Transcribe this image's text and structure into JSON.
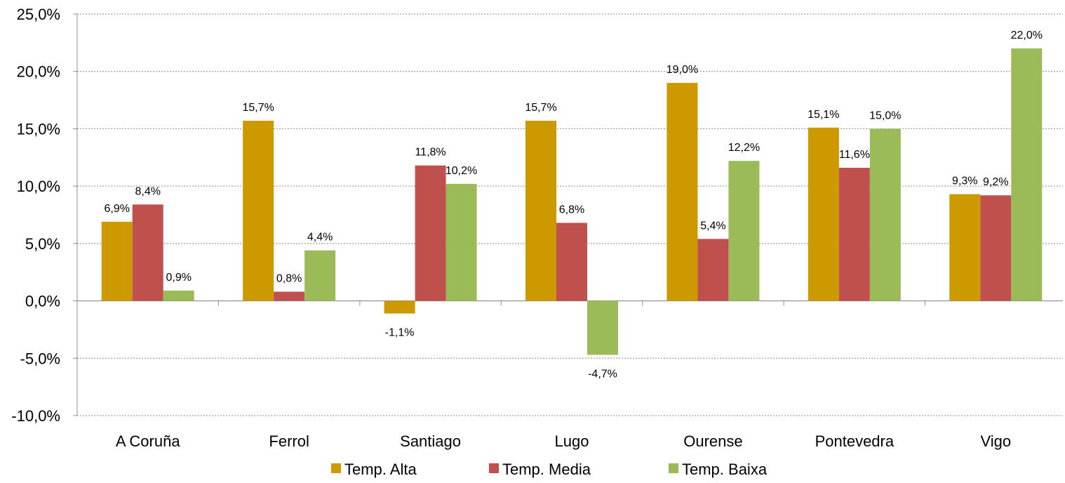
{
  "chart_data": {
    "type": "bar",
    "categories": [
      "A Coruña",
      "Ferrol",
      "Santiago",
      "Lugo",
      "Ourense",
      "Pontevedra",
      "Vigo"
    ],
    "series": [
      {
        "name": "Temp. Alta",
        "color": "#CC9900",
        "values": [
          6.9,
          15.7,
          -1.1,
          15.7,
          19.0,
          15.1,
          9.3
        ],
        "labels": [
          "6,9%",
          "15,7%",
          "-1,1%",
          "15,7%",
          "19,0%",
          "15,1%",
          "9,3%"
        ]
      },
      {
        "name": "Temp. Media",
        "color": "#C0504D",
        "values": [
          8.4,
          0.8,
          11.8,
          6.8,
          5.4,
          11.6,
          9.2
        ],
        "labels": [
          "8,4%",
          "0,8%",
          "11,8%",
          "6,8%",
          "5,4%",
          "11,6%",
          "9,2%"
        ]
      },
      {
        "name": "Temp. Baixa",
        "color": "#9BBB59",
        "values": [
          0.9,
          4.4,
          10.2,
          -4.7,
          12.2,
          15.0,
          22.0
        ],
        "labels": [
          "0,9%",
          "4,4%",
          "10,2%",
          "-4,7%",
          "12,2%",
          "15,0%",
          "22,0%"
        ]
      }
    ],
    "ylim": [
      -10,
      25
    ],
    "yticks": [
      -10,
      -5,
      0,
      5,
      10,
      15,
      20,
      25
    ],
    "ytick_labels": [
      "-10,0%",
      "-5,0%",
      "0,0%",
      "5,0%",
      "10,0%",
      "15,0%",
      "20,0%",
      "25,0%"
    ],
    "grid": true,
    "legend": "bottom",
    "title": "",
    "xlabel": "",
    "ylabel": ""
  }
}
